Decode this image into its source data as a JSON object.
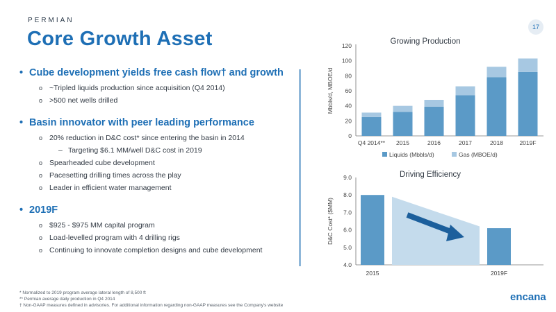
{
  "section_label": "PERMIAN",
  "title": "Core Growth Asset",
  "page_number": "17",
  "bullets": {
    "b1": {
      "text": "Cube development yields free cash flow† and growth",
      "subs": [
        "~Tripled liquids production since acquisition (Q4 2014)",
        ">500 net wells drilled"
      ]
    },
    "b2": {
      "text": "Basin innovator with peer leading performance",
      "sub1": "20% reduction in D&C cost* since entering the basin in 2014",
      "subsub": "Targeting $6.1 MM/well D&C cost in 2019",
      "subs": [
        "Spearheaded cube development",
        "Pacesetting drilling times across the play",
        "Leader in efficient water management"
      ]
    },
    "b3": {
      "text": "2019F",
      "subs": [
        "$925 - $975 MM capital program",
        "Load-levelled program with 4 drilling rigs",
        "Continuing to innovate completion designs and cube development"
      ]
    }
  },
  "footnotes": [
    "* Normalized to 2019 program average lateral length of 8,500 ft",
    "** Permian average daily production in Q4 2014",
    "† Non-GAAP measures defined in advisories. For additional information regarding non-GAAP measures see the Company's website"
  ],
  "logo_text": "encana",
  "colors": {
    "accent": "#1e6fb5",
    "liquids": "#5b9ac7",
    "gas": "#a7c8e2",
    "arrow": "#1c5f9c",
    "wedge": "#c4dbec"
  },
  "chart_data": [
    {
      "type": "bar",
      "stacked": true,
      "title": "Growing Production",
      "ylabel": "Mbbls/d, MBOE/d",
      "ylim": [
        0,
        120
      ],
      "yticks": [
        0,
        20,
        40,
        60,
        80,
        100,
        120
      ],
      "categories": [
        "Q4 2014**",
        "2015",
        "2016",
        "2017",
        "2018",
        "2019F"
      ],
      "series": [
        {
          "name": "Liquids (Mbbls/d)",
          "values": [
            25,
            32,
            39,
            54,
            78,
            85
          ]
        },
        {
          "name": "Gas (MBOE/d)",
          "values": [
            6,
            8,
            9,
            12,
            14,
            18
          ]
        }
      ],
      "legend": "bottom"
    },
    {
      "type": "bar",
      "title": "Driving Efficiency",
      "ylabel": "D&C Cost* ($MM)",
      "ylim": [
        4.0,
        9.0
      ],
      "yticks": [
        "4.0",
        "5.0",
        "6.0",
        "7.0",
        "8.0",
        "9.0"
      ],
      "categories": [
        "2015",
        "2019F"
      ],
      "values": [
        8.0,
        6.1
      ],
      "trend": {
        "from": 7.9,
        "to": 6.2
      }
    }
  ]
}
